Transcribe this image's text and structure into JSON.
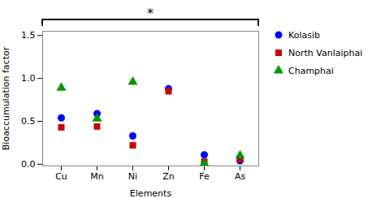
{
  "chart_data": {
    "type": "scatter",
    "xlabel": "Elements",
    "ylabel": "Bioaccumulation factor",
    "categories": [
      "Cu",
      "Mn",
      "Ni",
      "Zn",
      "Fe",
      "As"
    ],
    "series": [
      {
        "name": "Kolasib",
        "color": "#0000ff",
        "marker": "circle",
        "values": [
          0.54,
          0.59,
          0.33,
          0.88,
          0.11,
          0.04
        ]
      },
      {
        "name": "North Vanlaiphai",
        "color": "#cc0000",
        "marker": "square",
        "values": [
          0.43,
          0.44,
          0.22,
          0.85,
          0.03,
          0.06
        ]
      },
      {
        "name": "Champhai",
        "color": "#009900",
        "marker": "triangle",
        "values": [
          0.89,
          0.53,
          0.96,
          null,
          0.01,
          0.1
        ]
      }
    ],
    "ylim": [
      -0.02,
      1.55
    ],
    "yticks": [
      {
        "value": 0.0,
        "label": "0.0"
      },
      {
        "value": 0.5,
        "label": "0.5"
      },
      {
        "value": 1.0,
        "label": "1.0"
      },
      {
        "value": 1.5,
        "label": "1.5"
      }
    ],
    "grid": false,
    "legend": "right",
    "annotation": "*"
  }
}
